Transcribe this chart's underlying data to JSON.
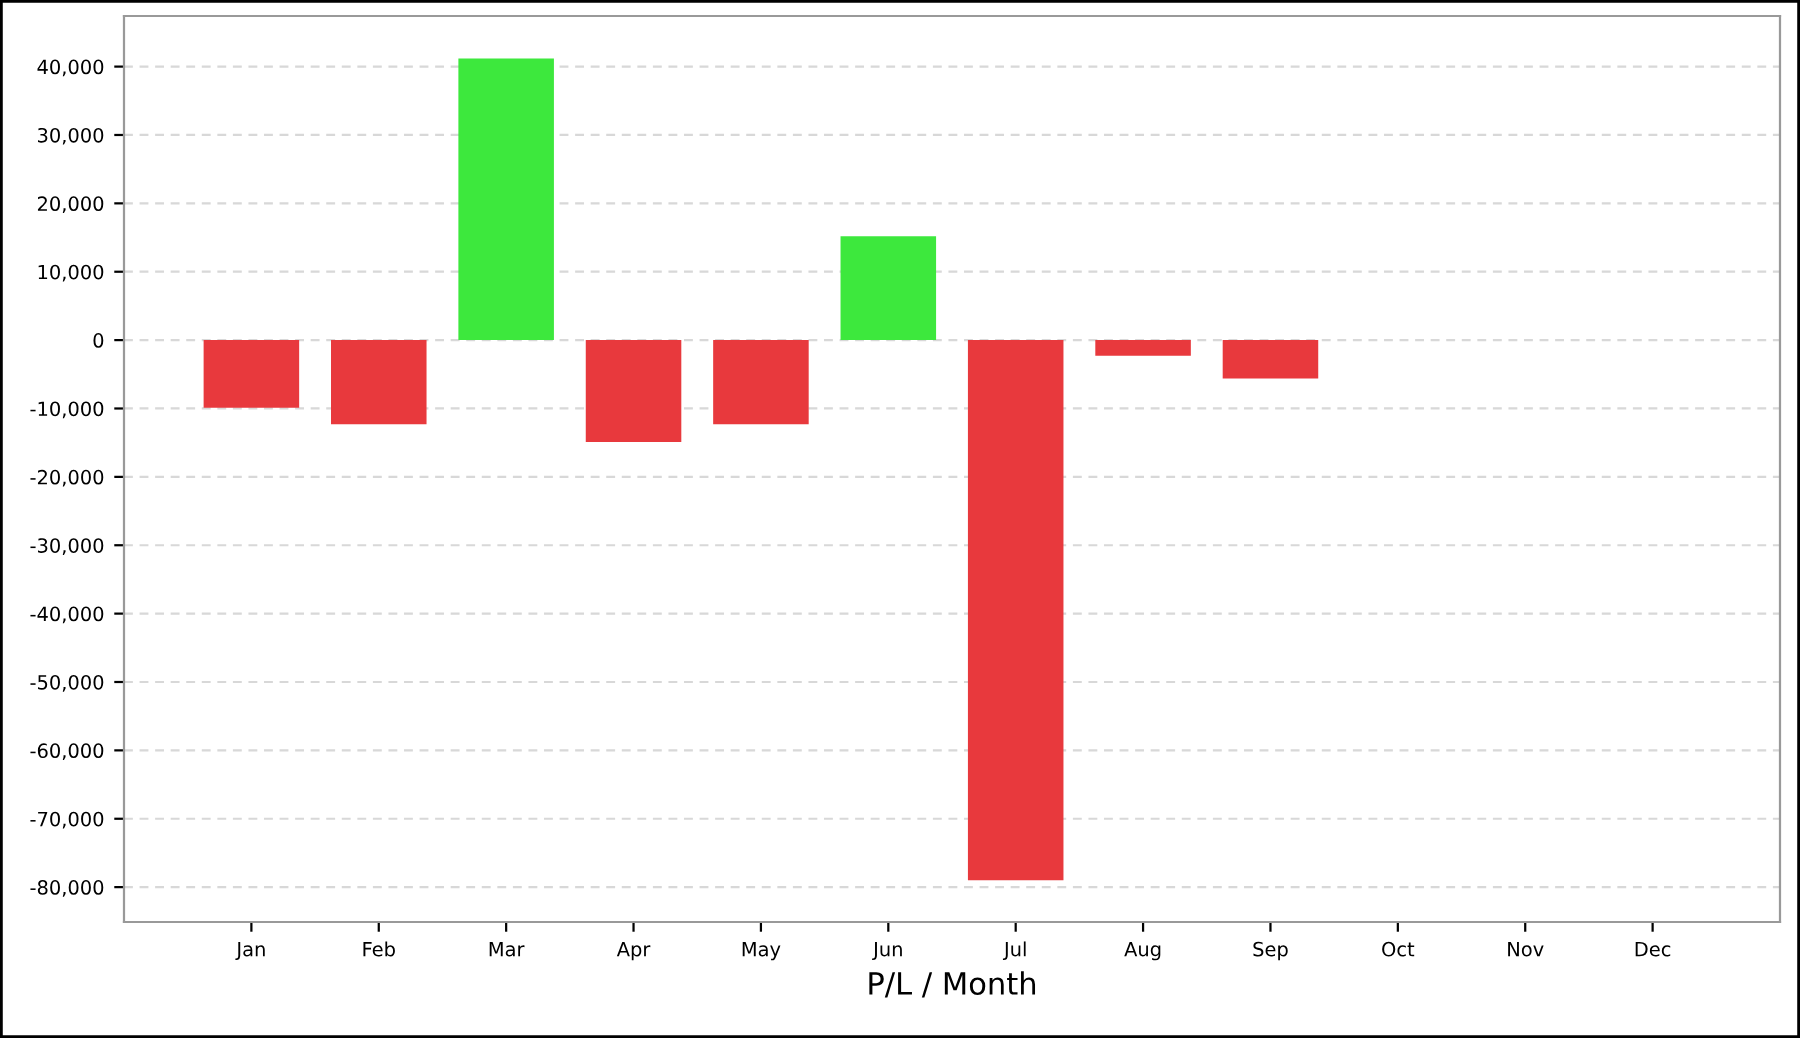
{
  "chart_data": {
    "type": "bar",
    "xlabel": "P/L / Month",
    "categories": [
      "Jan",
      "Feb",
      "Mar",
      "Apr",
      "May",
      "Jun",
      "Jul",
      "Aug",
      "Sep",
      "Oct",
      "Nov",
      "Dec"
    ],
    "values": [
      -9900,
      -12300,
      41200,
      -14900,
      -12300,
      15200,
      -79000,
      -2300,
      -5600,
      null,
      null,
      null
    ],
    "colors": [
      "#e8393d",
      "#e8393d",
      "#3de83d",
      "#e8393d",
      "#e8393d",
      "#3de83d",
      "#e8393d",
      "#e8393d",
      "#e8393d",
      "#e8393d",
      "#e8393d",
      "#e8393d"
    ],
    "ylim": [
      -85100,
      47400
    ],
    "yticks": [
      {
        "value": 40000,
        "label": "40,000"
      },
      {
        "value": 30000,
        "label": "30,000"
      },
      {
        "value": 20000,
        "label": "20,000"
      },
      {
        "value": 10000,
        "label": "10,000"
      },
      0,
      {
        "value": -10000,
        "label": "-10,000"
      },
      {
        "value": -20000,
        "label": "-20,000"
      },
      {
        "value": -30000,
        "label": "-30,000"
      },
      {
        "value": -40000,
        "label": "-40,000"
      },
      {
        "value": -50000,
        "label": "-50,000"
      },
      {
        "value": -60000,
        "label": "-60,000"
      },
      {
        "value": -70000,
        "label": "-70,000"
      },
      {
        "value": -80000,
        "label": "-80,000"
      }
    ],
    "grid": "y"
  }
}
